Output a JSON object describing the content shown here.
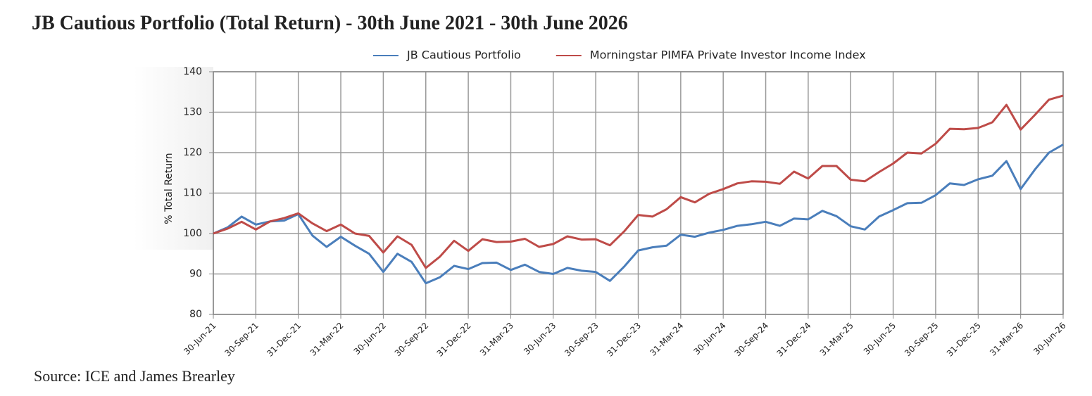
{
  "chart_data": {
    "type": "line",
    "title": "JB Cautious Portfolio (Total Return) - 30th June 2021 - 30th June 2026",
    "y_label": "% Total Return",
    "source": "Source: ICE and James Brearley",
    "categories": [
      "30-Jun-21",
      null,
      null,
      "30-Sep-21",
      null,
      null,
      "31-Dec-21",
      null,
      null,
      "31-Mar-22",
      null,
      null,
      "30-Jun-22",
      null,
      null,
      "30-Sep-22",
      null,
      null,
      "31-Dec-22",
      null,
      null,
      "31-Mar-23",
      null,
      null,
      "30-Jun-23",
      null,
      null,
      "30-Sep-23",
      null,
      null,
      "31-Dec-23",
      null,
      null,
      "31-Mar-24",
      null,
      null,
      "30-Jun-24",
      null,
      null,
      "30-Sep-24",
      null,
      null,
      "31-Dec-24",
      null,
      null,
      "31-Mar-25",
      null,
      null,
      "30-Jun-25",
      null,
      null,
      "30-Sep-25",
      null,
      null,
      "31-Dec-25",
      null,
      null,
      "31-Mar-26",
      null,
      null,
      "30-Jun-26"
    ],
    "series": [
      {
        "name": "JB Cautious Portfolio",
        "color": "#4a7ebb",
        "values": [
          100,
          101.5,
          104.2,
          102.2,
          103,
          103.2,
          104.8,
          99.5,
          96.7,
          99.2,
          97,
          95,
          90.5,
          95,
          93,
          87.7,
          89.2,
          92,
          91.2,
          92.7,
          92.8,
          91,
          92.3,
          90.5,
          90,
          91.5,
          90.8,
          90.5,
          88.3,
          91.8,
          95.8,
          96.6,
          97,
          99.7,
          99.2,
          100.2,
          100.9,
          101.9,
          102.3,
          102.9,
          101.9,
          103.7,
          103.5,
          105.6,
          104.3,
          101.8,
          101,
          104.2,
          105.8,
          107.5,
          107.6,
          109.5,
          112.4,
          112,
          113.4,
          114.3,
          117.9,
          111,
          115.8,
          120,
          122
        ]
      },
      {
        "name": "Morningstar PIMFA Private Investor Income Index",
        "color": "#be4b48",
        "values": [
          100,
          101.2,
          102.9,
          101,
          103,
          103.8,
          105,
          102.5,
          100.6,
          102.2,
          100,
          99.4,
          95.3,
          99.3,
          97.2,
          91.5,
          94.3,
          98.2,
          95.7,
          98.6,
          97.9,
          98,
          98.7,
          96.7,
          97.4,
          99.3,
          98.5,
          98.6,
          97.1,
          100.5,
          104.6,
          104.2,
          106,
          109,
          107.7,
          109.8,
          111,
          112.4,
          112.9,
          112.8,
          112.3,
          115.3,
          113.6,
          116.7,
          116.7,
          113.3,
          112.9,
          115.2,
          117.3,
          120,
          119.8,
          122.2,
          125.9,
          125.8,
          126.1,
          127.5,
          131.8,
          125.7,
          129.3,
          133.1,
          134.1
        ]
      }
    ],
    "ylim": [
      80,
      140
    ],
    "yticks": [
      80,
      90,
      100,
      110,
      120,
      130,
      140
    ],
    "grid": true,
    "legend": "top"
  }
}
